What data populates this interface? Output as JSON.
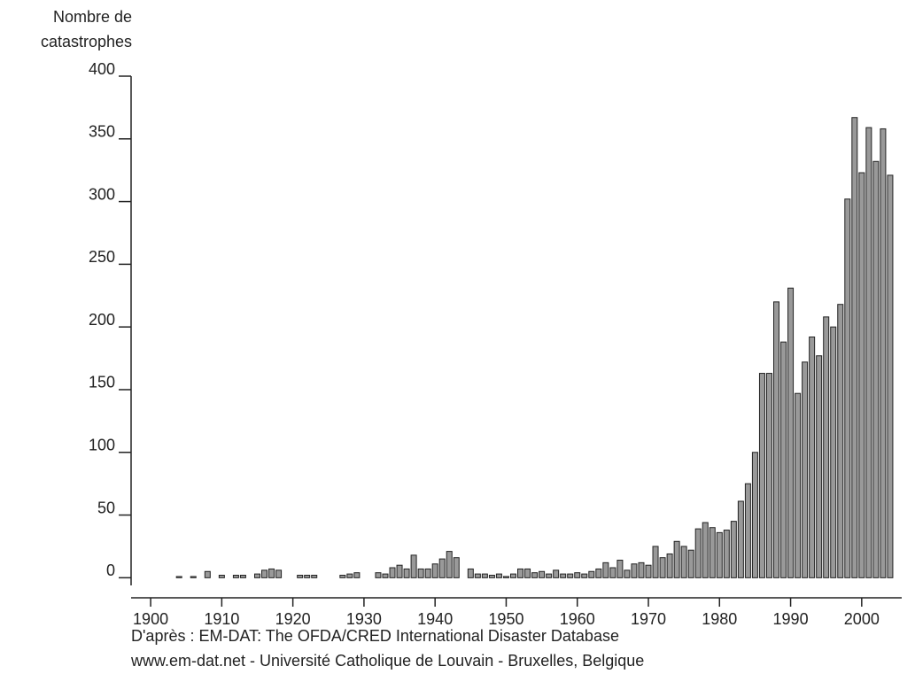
{
  "chart_data": {
    "type": "bar",
    "ylabel": [
      "Nombre de",
      "catastrophes"
    ],
    "source": [
      "D'après : EM-DAT: The OFDA/CRED International Disaster Database",
      "www.em-dat.net - Université Catholique de Louvain - Bruxelles, Belgique"
    ],
    "color": "#999999",
    "x": [
      1904,
      1906,
      1908,
      1910,
      1912,
      1913,
      1915,
      1916,
      1917,
      1918,
      1921,
      1922,
      1923,
      1927,
      1928,
      1929,
      1932,
      1933,
      1934,
      1935,
      1936,
      1937,
      1938,
      1939,
      1940,
      1941,
      1942,
      1943,
      1945,
      1946,
      1947,
      1948,
      1949,
      1950,
      1951,
      1952,
      1953,
      1954,
      1955,
      1956,
      1957,
      1958,
      1959,
      1960,
      1961,
      1962,
      1963,
      1964,
      1965,
      1966,
      1967,
      1968,
      1969,
      1970,
      1971,
      1972,
      1973,
      1974,
      1975,
      1976,
      1977,
      1978,
      1979,
      1980,
      1981,
      1982,
      1983,
      1984,
      1985,
      1986,
      1987,
      1988,
      1989,
      1990,
      1991,
      1992,
      1993,
      1994,
      1995,
      1996,
      1997,
      1998,
      1999,
      2000,
      2001,
      2002,
      2003,
      2004
    ],
    "values": [
      1,
      1,
      5,
      2,
      2,
      2,
      3,
      6,
      7,
      6,
      2,
      2,
      2,
      2,
      3,
      4,
      4,
      3,
      8,
      10,
      7,
      18,
      7,
      7,
      11,
      15,
      21,
      16,
      7,
      3,
      3,
      2,
      3,
      1,
      3,
      7,
      7,
      4,
      5,
      3,
      6,
      3,
      3,
      4,
      3,
      5,
      7,
      12,
      8,
      14,
      6,
      11,
      12,
      10,
      25,
      16,
      19,
      29,
      25,
      22,
      39,
      44,
      40,
      36,
      38,
      45,
      61,
      75,
      100,
      163,
      163,
      220,
      188,
      231,
      147,
      172,
      192,
      177,
      208,
      200,
      218,
      302,
      367,
      323,
      359,
      332,
      358,
      321
    ],
    "xlim": [
      1897,
      2006
    ],
    "xticks": [
      1900,
      1910,
      1920,
      1930,
      1940,
      1950,
      1960,
      1970,
      1980,
      1990,
      2000
    ],
    "ylim": [
      -16,
      400
    ],
    "yticks": [
      0,
      50,
      100,
      150,
      200,
      250,
      300,
      350,
      400
    ]
  }
}
